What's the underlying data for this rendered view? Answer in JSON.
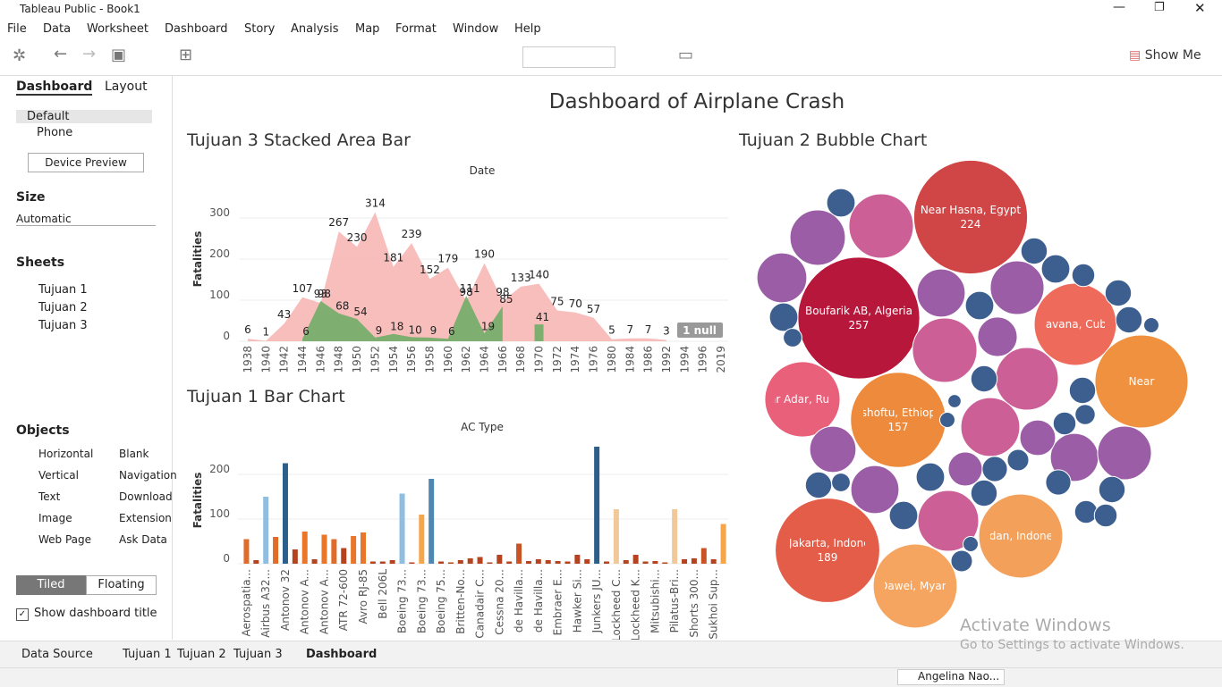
{
  "window": {
    "title": "Tableau Public - Book1"
  },
  "menu": [
    "File",
    "Data",
    "Worksheet",
    "Dashboard",
    "Story",
    "Analysis",
    "Map",
    "Format",
    "Window",
    "Help"
  ],
  "toolbar": {
    "show_me": "Show Me"
  },
  "left_pane": {
    "tabs": [
      "Dashboard",
      "Layout"
    ],
    "devices": [
      "Default",
      "Phone"
    ],
    "device_preview": "Device Preview",
    "size_heading": "Size",
    "size_value": "Automatic",
    "sheets_heading": "Sheets",
    "sheets": [
      "Tujuan 1",
      "Tujuan 2",
      "Tujuan 3"
    ],
    "objects_heading": "Objects",
    "objects": [
      "Horizontal",
      "Blank",
      "Vertical",
      "Navigation",
      "Text",
      "Download",
      "Image",
      "Extension",
      "Web Page",
      "Ask Data"
    ],
    "layout_modes": [
      "Tiled",
      "Floating"
    ],
    "show_title": "Show dashboard title"
  },
  "dashboard": {
    "title": "Dashboard of Airplane Crash"
  },
  "chart_data": [
    {
      "type": "area",
      "title": "Tujuan 3 Stacked Area Bar",
      "x_label": "Date",
      "y_label": "Fatalities",
      "categories": [
        "1938",
        "1940",
        "1942",
        "1944",
        "1946",
        "1948",
        "1950",
        "1952",
        "1954",
        "1956",
        "1958",
        "1960",
        "1962",
        "1964",
        "1966",
        "1968",
        "1970",
        "1972",
        "1974",
        "1976",
        "1980",
        "1984",
        "1986",
        "1992",
        "1994",
        "1996",
        "2019"
      ],
      "series": [
        {
          "color": "#f7b3b0",
          "values": [
            6,
            1,
            43,
            107,
            93,
            267,
            230,
            314,
            181,
            239,
            152,
            179,
            98,
            190,
            98,
            133,
            140,
            75,
            70,
            57,
            5,
            7,
            7,
            3,
            null,
            null,
            null
          ]
        },
        {
          "color": "#6aad63",
          "values": [
            null,
            null,
            null,
            6,
            98,
            68,
            54,
            9,
            18,
            10,
            9,
            6,
            111,
            19,
            85,
            null,
            41,
            null,
            null,
            null,
            null,
            null,
            null,
            null,
            null,
            null,
            null
          ]
        }
      ],
      "ylim": [
        0,
        400
      ],
      "yticks": [
        0,
        100,
        200,
        300
      ],
      "grid": true,
      "null_badge": "1 null"
    },
    {
      "type": "bar",
      "title": "Tujuan 1 Bar Chart",
      "x_label": "AC Type",
      "y_label": "Fatalities",
      "categories": [
        "Aerospatia...",
        null,
        "Airbus A32...",
        null,
        "Antonov 32",
        null,
        "Antonov A...",
        null,
        "Antonov A...",
        null,
        "ATR 72-600",
        null,
        "Avro RJ-85",
        null,
        "Bell 206L",
        null,
        "Boeing 73...",
        null,
        "Boeing 73...",
        null,
        "Boeing 75...",
        null,
        "Britten-No...",
        null,
        "Canadair C...",
        null,
        "Cessna 20...",
        null,
        "de Havilla...",
        null,
        "de Havilla...",
        null,
        "Embraer E...",
        null,
        "Hawker Si...",
        null,
        "Junkers JU...",
        null,
        "Lockheed C...",
        null,
        "Lockheed K...",
        null,
        "Mitsubishi...",
        null,
        "Pilatus-Bri...",
        null,
        "Shorts 300...",
        null,
        "Sukhoi Sup...",
        null
      ],
      "values": [
        55,
        8,
        150,
        60,
        225,
        32,
        72,
        10,
        65,
        55,
        35,
        62,
        70,
        5,
        5,
        8,
        157,
        3,
        110,
        190,
        5,
        3,
        8,
        12,
        15,
        3,
        20,
        5,
        45,
        6,
        10,
        8,
        6,
        5,
        20,
        10,
        262,
        5,
        122,
        8,
        20,
        5,
        6,
        3,
        122,
        10,
        12,
        35,
        10,
        89
      ],
      "colors": [
        "#e06c2a",
        "#b5431f",
        "#8fbfe0",
        "#e06c2a",
        "#2d5f8b",
        "#b5431f",
        "#e8762b",
        "#b5431f",
        "#e8762b",
        "#e06c2a",
        "#b5431f",
        "#e8762b",
        "#e8762b",
        "#b5431f",
        "#b5431f",
        "#b5431f",
        "#8fbfe0",
        "#b5431f",
        "#f5a54a",
        "#4e86b4",
        "#b5431f",
        "#b5431f",
        "#b5431f",
        "#b5431f",
        "#b5431f",
        "#b5431f",
        "#b5431f",
        "#b5431f",
        "#c85425",
        "#b5431f",
        "#b5431f",
        "#b5431f",
        "#b5431f",
        "#b5431f",
        "#b5431f",
        "#b5431f",
        "#2d5f8b",
        "#b5431f",
        "#f0c89a",
        "#b5431f",
        "#b5431f",
        "#b5431f",
        "#b5431f",
        "#b5431f",
        "#f0c89a",
        "#b5431f",
        "#b5431f",
        "#c85425",
        "#b5431f",
        "#f5a54a"
      ],
      "ylim": [
        0,
        280
      ],
      "yticks": [
        0,
        100,
        200
      ],
      "grid": true
    },
    {
      "type": "bubble",
      "title": "Tujuan 2 Bubble Chart",
      "labels": [
        "Near Hasna, Egypt",
        "Boufarik AB, Algeria",
        "Havana, Cuba",
        "Near",
        "Near Adar, Russia",
        "Bishoftu, Ethiopia",
        "Off Jakarta, Indonesia",
        "Medan, Indonesia",
        "Off Dawei, Myanmar",
        null,
        null,
        null,
        null,
        null,
        null,
        null,
        null,
        null,
        null,
        null,
        null,
        null,
        null,
        null,
        null,
        null,
        null,
        null,
        null,
        null,
        null,
        null,
        null,
        null,
        null,
        null,
        null,
        null,
        null,
        null,
        null,
        null,
        null,
        null,
        null,
        null,
        null,
        null,
        null,
        null,
        null,
        null,
        null,
        null
      ],
      "value_labels": [
        "224",
        "257",
        null,
        null,
        null,
        "157",
        "189",
        null,
        null,
        null,
        null,
        null,
        null,
        null,
        null,
        null,
        null,
        null,
        null,
        null,
        null,
        null,
        null,
        null,
        null,
        null,
        null,
        null,
        null,
        null,
        null,
        null,
        null,
        null,
        null,
        null,
        null,
        null,
        null,
        null,
        null,
        null,
        null,
        null,
        null,
        null,
        null,
        null,
        null,
        null,
        null,
        null,
        null,
        null
      ],
      "values": [
        224,
        257,
        117,
        150,
        98,
        157,
        189,
        122,
        122,
        72,
        53,
        43,
        72,
        50,
        40,
        68,
        60,
        64,
        40,
        37,
        40,
        50,
        27,
        22,
        20,
        14,
        12,
        14,
        9,
        12,
        12,
        4,
        14,
        6,
        14,
        12,
        12,
        7,
        9,
        11,
        12,
        9,
        9,
        14,
        12,
        8,
        11,
        12,
        6,
        8,
        4,
        4,
        3,
        14
      ],
      "colors": [
        "#d04545",
        "#b8173c",
        "#ee6a5a",
        "#f0913f",
        "#e8607a",
        "#ee8a3c",
        "#e35d49",
        "#f2a05a",
        "#f5a55f",
        "#cc5f96",
        "#9b5ea6",
        "#9b5ea6",
        "#cc5f96",
        "#9b5ea6",
        "#9b5ea6",
        "#cc5f96",
        "#cc5f96",
        "#cc5f96",
        "#9b5ea6",
        "#9b5ea6",
        "#9b5ea6",
        "#9b5ea6",
        "#9b5ea6",
        "#9b5ea6",
        "#9b5ea6",
        "#3d5f8f",
        "#3d5f8f",
        "#3d5f8f",
        "#3d5f8f",
        "#3d5f8f",
        "#3d5f8f",
        "#3d5f8f",
        "#3d5f8f",
        "#3d5f8f",
        "#3d5f8f",
        "#3d5f8f",
        "#3d5f8f",
        "#3d5f8f",
        "#3d5f8f",
        "#3d5f8f",
        "#3d5f8f",
        "#3d5f8f",
        "#3d5f8f",
        "#3d5f8f",
        "#3d5f8f",
        "#3d5f8f",
        "#3d5f8f",
        "#3d5f8f",
        "#3d5f8f",
        "#3d5f8f",
        "#3d5f8f",
        "#3d5f8f",
        "#3d5f8f",
        "#3d5f8f"
      ]
    }
  ],
  "bottom_tabs": [
    "Data Source",
    "Tujuan 1",
    "Tujuan 2",
    "Tujuan 3",
    "Dashboard"
  ],
  "status": {
    "user": "Angelina Nao..."
  },
  "watermark": {
    "line1": "Activate Windows",
    "line2": "Go to Settings to activate Windows."
  }
}
